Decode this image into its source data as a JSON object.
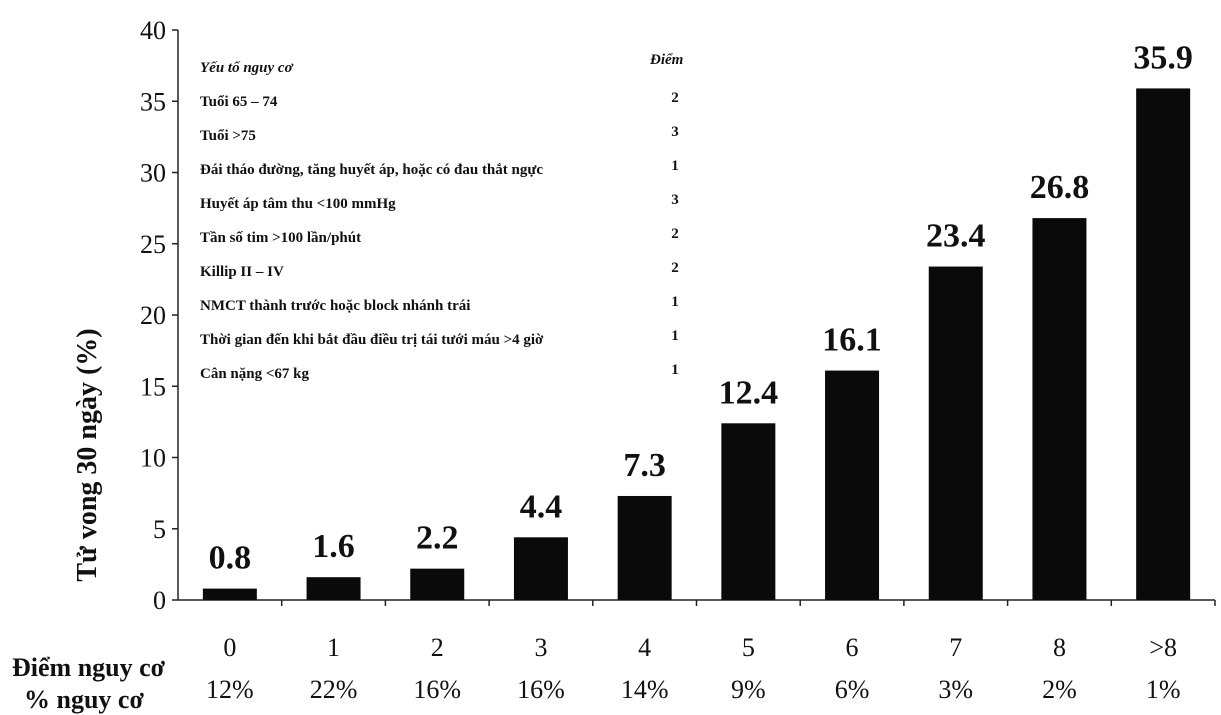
{
  "chart_data": {
    "type": "bar",
    "ylabel": "Tử vong 30 ngày (%)",
    "ylim": [
      0,
      40
    ],
    "yticks": [
      "0",
      "5",
      "10",
      "15",
      "20",
      "25",
      "30",
      "35",
      "40"
    ],
    "categories": [
      "0",
      "1",
      "2",
      "3",
      "4",
      "5",
      "6",
      "7",
      "8",
      ">8"
    ],
    "values": [
      0.8,
      1.6,
      2.2,
      4.4,
      7.3,
      12.4,
      16.1,
      23.4,
      26.8,
      35.9
    ],
    "data_labels": [
      "0.8",
      "1.6",
      "2.2",
      "4.4",
      "7.3",
      "12.4",
      "16.1",
      "23.4",
      "26.8",
      "35.9"
    ],
    "bar_color": "#0a0a0a",
    "grid": false,
    "row_labels": {
      "score": "Điểm nguy cơ",
      "percent": "% nguy cơ"
    },
    "risk_percent": [
      "12%",
      "22%",
      "16%",
      "16%",
      "14%",
      "9%",
      "6%",
      "3%",
      "2%",
      "1%"
    ],
    "inset_table": {
      "header_factor": "Yếu tố nguy cơ",
      "header_points": "Điểm",
      "rows": [
        {
          "factor": "Tuổi 65 – 74",
          "points": "2"
        },
        {
          "factor": "Tuổi >75",
          "points": "3"
        },
        {
          "factor": "Đái tháo đường, tăng huyết áp, hoặc có đau thắt ngực",
          "points": "1"
        },
        {
          "factor": "Huyết áp tâm thu <100 mmHg",
          "points": "3"
        },
        {
          "factor": "Tần số tim >100 lần/phút",
          "points": "2"
        },
        {
          "factor": "Killip II – IV",
          "points": "2"
        },
        {
          "factor": "NMCT thành trước hoặc block nhánh trái",
          "points": "1"
        },
        {
          "factor": "Thời gian đến khi bắt đầu điều trị tái tưới máu >4 giờ",
          "points": "1"
        },
        {
          "factor": "Cân nặng <67 kg",
          "points": "1"
        }
      ]
    }
  }
}
